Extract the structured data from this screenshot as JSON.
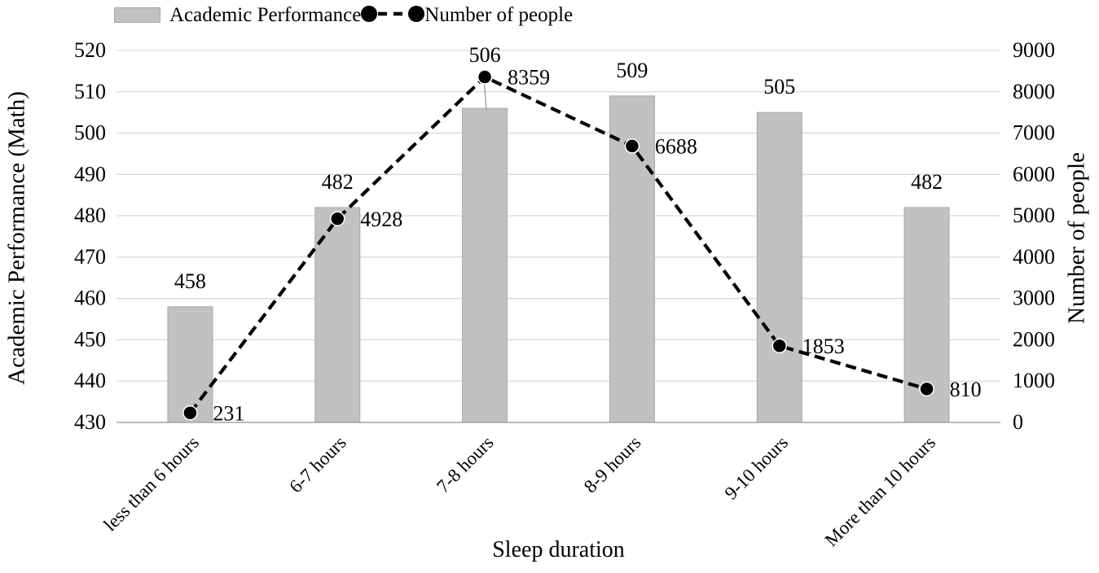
{
  "chart_data": {
    "type": "combo",
    "title": "",
    "xlabel": "Sleep duration",
    "categories": [
      "less than 6 hours",
      "6-7 hours",
      "7-8 hours",
      "8-9 hours",
      "9-10 hours",
      "More than 10 hours"
    ],
    "series": [
      {
        "name": "Academic Performance",
        "type": "bar",
        "axis": "left",
        "values": [
          458,
          482,
          506,
          509,
          505,
          482
        ],
        "color": "#c1c1c1"
      },
      {
        "name": "Number of people",
        "type": "line",
        "axis": "right",
        "values": [
          231,
          4928,
          8359,
          6688,
          1853,
          810
        ],
        "color": "#000000",
        "line_style": "dashed",
        "marker": "circle"
      }
    ],
    "left_axis": {
      "label": "Academic Performance (Math)",
      "min": 430,
      "max": 520,
      "step": 10,
      "ticks": [
        "430",
        "440",
        "450",
        "460",
        "470",
        "480",
        "490",
        "500",
        "510",
        "520"
      ]
    },
    "right_axis": {
      "label": "Number of people",
      "min": 0,
      "max": 9000,
      "step": 1000,
      "ticks": [
        "0",
        "1000",
        "2000",
        "3000",
        "4000",
        "5000",
        "6000",
        "7000",
        "8000",
        "9000"
      ]
    },
    "grid": true,
    "legend_position": "top-left",
    "bar_label_dy": [
      0,
      0,
      -34,
      0,
      0,
      0
    ],
    "colors": {
      "bar": "#c1c1c1",
      "bar_border": "#a8a8a8",
      "gridline": "#d9d9d9",
      "axis_line": "#a6a6a6",
      "line": "#000000",
      "text": "#000000",
      "leader": "#a0a0a0"
    }
  }
}
